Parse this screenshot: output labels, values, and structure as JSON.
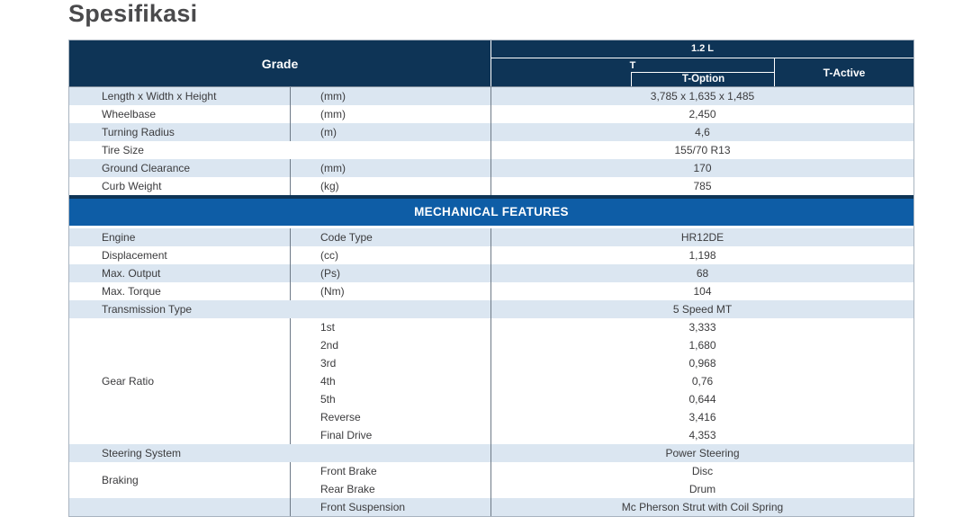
{
  "title": "Spesifikasi",
  "header": {
    "grade": "Grade",
    "engine": "1.2 L",
    "t": "T",
    "t_option": "T-Option",
    "t_active": "T-Active"
  },
  "sections": {
    "dimensions": {
      "rows": [
        {
          "label": "Length x Width x Height",
          "unit": "(mm)",
          "value": "3,785 x 1,635 x 1,485"
        },
        {
          "label": "Wheelbase",
          "unit": "(mm)",
          "value": "2,450"
        },
        {
          "label": "Turning Radius",
          "unit": "(m)",
          "value": "4,6"
        },
        {
          "label": "Tire Size",
          "unit": "",
          "value": "155/70 R13"
        },
        {
          "label": "Ground Clearance",
          "unit": "(mm)",
          "value": "170"
        },
        {
          "label": "Curb Weight",
          "unit": "(kg)",
          "value": "785"
        }
      ]
    },
    "mechanical": {
      "band": "MECHANICAL FEATURES",
      "rows": [
        {
          "label": "Engine",
          "unit": "Code Type",
          "value": "HR12DE"
        },
        {
          "label": "Displacement",
          "unit": "(cc)",
          "value": "1,198"
        },
        {
          "label": "Max. Output",
          "unit": "(Ps)",
          "value": "68"
        },
        {
          "label": "Max. Torque",
          "unit": "(Nm)",
          "value": "104"
        },
        {
          "label": "Transmission Type",
          "unit": "",
          "value": "5 Speed MT"
        }
      ],
      "gear_ratio": {
        "label": "Gear Ratio",
        "items": [
          {
            "name": "1st",
            "value": "3,333"
          },
          {
            "name": "2nd",
            "value": "1,680"
          },
          {
            "name": "3rd",
            "value": "0,968"
          },
          {
            "name": "4th",
            "value": "0,76"
          },
          {
            "name": "5th",
            "value": "0,644"
          },
          {
            "name": "Reverse",
            "value": "3,416"
          },
          {
            "name": "Final Drive",
            "value": "4,353"
          }
        ]
      },
      "steering": {
        "label": "Steering System",
        "value": "Power Steering"
      },
      "braking": {
        "label": "Braking",
        "items": [
          {
            "name": "Front Brake",
            "value": "Disc"
          },
          {
            "name": "Rear Brake",
            "value": "Drum"
          }
        ]
      },
      "suspension": {
        "items": [
          {
            "name": "Front Suspension",
            "value": "Mc Pherson Strut with Coil Spring"
          }
        ]
      }
    }
  },
  "colors": {
    "header_navy": "#0e3456",
    "band_blue": "#0e5da6",
    "stripe_blue": "#dbe6f1"
  }
}
